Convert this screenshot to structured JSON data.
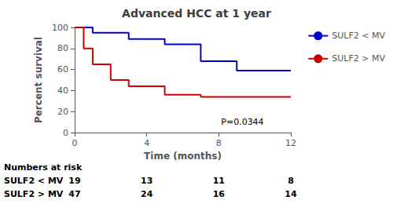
{
  "chart_data": {
    "type": "step",
    "title": "Advanced HCC at 1 year",
    "xlabel": "Time (months)",
    "ylabel": "Percent survival",
    "xlim": [
      0,
      12
    ],
    "ylim": [
      0,
      100
    ],
    "xticks": [
      0,
      4,
      8,
      12
    ],
    "yticks": [
      0,
      20,
      40,
      60,
      80,
      100
    ],
    "grid": false,
    "legend": "right",
    "series": [
      {
        "name": "SULF2 < MV",
        "color": "#0000CC",
        "x": [
          0,
          1,
          1,
          3,
          3,
          5,
          5,
          7,
          7,
          9,
          9,
          12
        ],
        "values": [
          100,
          100,
          95,
          95,
          89,
          89,
          84,
          84,
          68,
          68,
          59,
          59
        ]
      },
      {
        "name": "SULF2 > MV",
        "color": "#CC0000",
        "x": [
          0,
          0.5,
          0.5,
          1,
          1,
          2,
          2,
          3,
          3,
          5,
          5,
          7,
          7,
          9,
          9,
          12
        ],
        "values": [
          100,
          100,
          80,
          80,
          65,
          65,
          50,
          50,
          44,
          44,
          36,
          36,
          34,
          34,
          34,
          34
        ]
      }
    ],
    "annotations": [
      {
        "text": "P=0.0344",
        "x": 10.5,
        "y": 6
      }
    ],
    "risk_table": {
      "title": "Numbers at risk",
      "x": [
        0,
        4,
        8,
        12
      ],
      "rows": [
        {
          "label": "SULF2 < MV",
          "values": [
            19,
            13,
            11,
            8
          ]
        },
        {
          "label": "SULF2 > MV",
          "values": [
            47,
            24,
            16,
            14
          ]
        }
      ]
    }
  }
}
